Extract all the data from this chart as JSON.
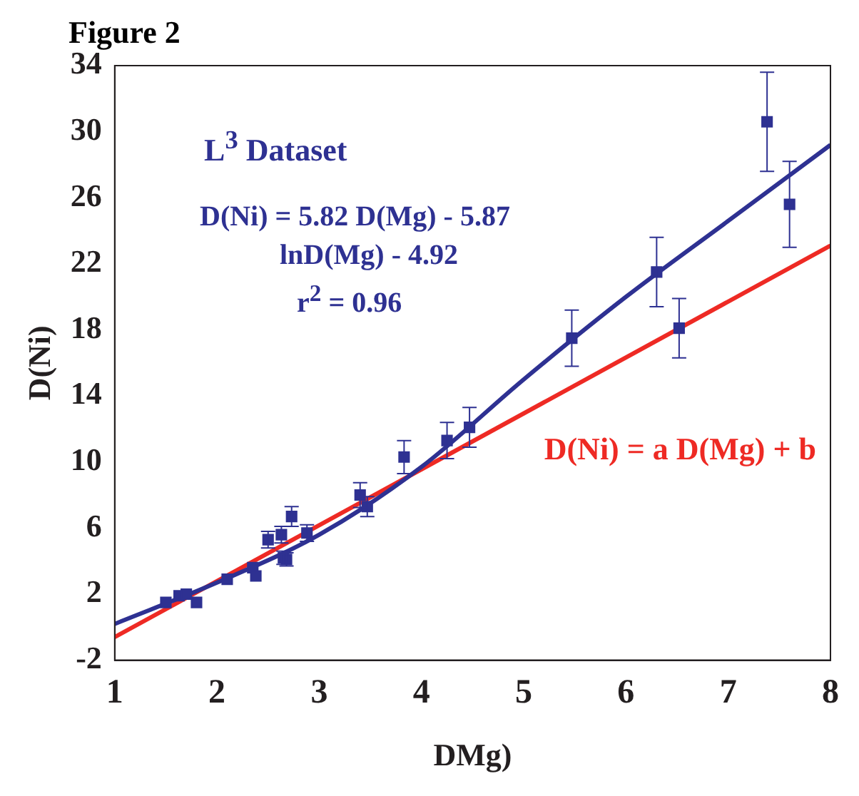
{
  "chart_data": {
    "type": "scatter",
    "title": "Figure 2",
    "xlabel": "DMg)",
    "ylabel": "D(Ni)",
    "annotations": [
      "L$^{3}$ Dataset",
      "D(Ni) = 5.82 D(Mg) - 5.87",
      "lnD(Mg) - 4.92",
      "r$^{2}$ =  0.96"
    ],
    "xlim": [
      1,
      8
    ],
    "xticks": [
      1,
      2,
      3,
      4,
      5,
      6,
      7,
      8
    ],
    "ylim": [
      -2,
      34
    ],
    "yticks": [
      -2,
      2,
      6,
      10,
      14,
      18,
      22,
      26,
      30,
      34
    ],
    "grid": false,
    "legend": false,
    "series": [
      {
        "marker": "square",
        "color": "#2e3192",
        "x": [
          1.5,
          1.63,
          1.7,
          1.8,
          2.1,
          2.35,
          2.38,
          2.5,
          2.63,
          2.65,
          2.68,
          2.73,
          2.88,
          3.4,
          3.47,
          3.83,
          4.25,
          4.47,
          5.47,
          6.3,
          6.52,
          7.38,
          7.6
        ],
        "values": [
          1.5,
          1.9,
          2.0,
          1.5,
          2.9,
          3.6,
          3.1,
          5.3,
          5.6,
          4.2,
          4.1,
          6.7,
          5.7,
          8.0,
          7.3,
          10.3,
          11.3,
          12.1,
          17.5,
          21.5,
          18.1,
          30.6,
          25.6
        ],
        "errors": [
          null,
          null,
          null,
          null,
          null,
          null,
          null,
          0.5,
          0.5,
          0.4,
          0.4,
          0.6,
          0.5,
          0.75,
          0.6,
          1.0,
          1.1,
          1.2,
          1.7,
          2.1,
          1.8,
          3.0,
          2.6
        ]
      },
      {
        "type": "line",
        "marker": "none",
        "color": "#2e3192",
        "x": [
          1,
          2,
          3,
          4,
          5,
          6,
          7,
          8
        ],
        "values": [
          0.2,
          2.7,
          5.6,
          9.7,
          15.0,
          20.0,
          24.6,
          29.2
        ]
      },
      {
        "type": "line",
        "marker": "none",
        "name": "D(Ni) = a D(Mg) + b",
        "color": "#ee2a24",
        "x": [
          1,
          8
        ],
        "values": [
          -0.6,
          23.1
        ]
      }
    ]
  }
}
